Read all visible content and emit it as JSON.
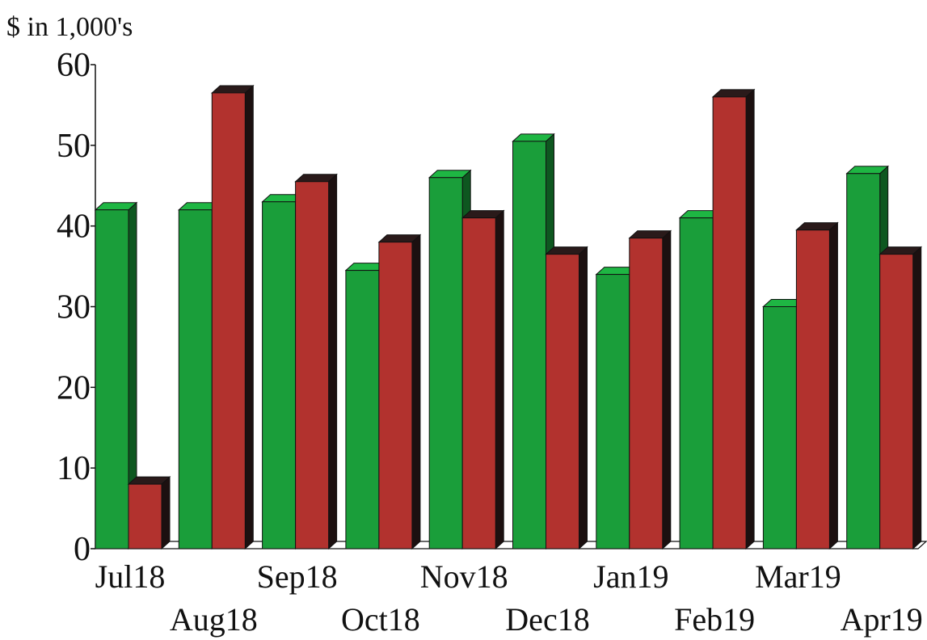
{
  "chart_data": {
    "type": "bar",
    "title": "",
    "ylabel": "$ in 1,000's",
    "xlabel": "",
    "ylim": [
      0,
      60
    ],
    "yticks": [
      0,
      10,
      20,
      30,
      40,
      50,
      60
    ],
    "categories": [
      "Jul18",
      "Aug18",
      "Sep18",
      "Oct18",
      "Nov18",
      "Dec18",
      "Jan19",
      "Feb19",
      "Mar19",
      "Apr19"
    ],
    "series": [
      {
        "values": [
          42,
          42,
          43,
          34.5,
          46,
          50.5,
          34,
          41,
          30,
          46.5
        ],
        "color": "#1a9e3a"
      },
      {
        "values": [
          8,
          56.5,
          45.5,
          38,
          41,
          36.5,
          38.5,
          56,
          39.5,
          36.5
        ],
        "color": "#b2322e"
      }
    ],
    "style": "3d-clustered-columns",
    "grid": false
  }
}
